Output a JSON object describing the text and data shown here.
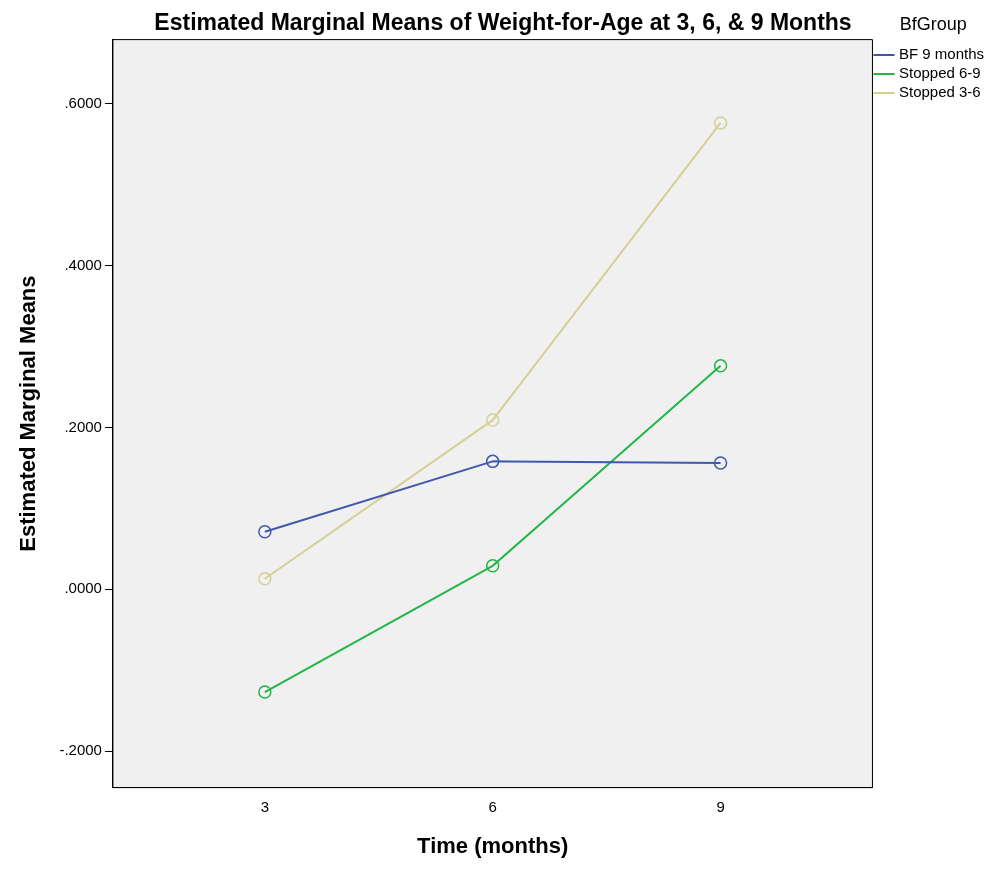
{
  "chart_data": {
    "type": "line",
    "title": "Estimated Marginal Means of Weight-for-Age at 3, 6, & 9 Months",
    "xlabel": "Time (months)",
    "ylabel": "Estimated Marginal Means",
    "legend_title": "BfGroup",
    "x": [
      3,
      6,
      9
    ],
    "series": [
      {
        "name": "BF 9 months",
        "color": "#3e58ac",
        "values": [
          0.071,
          0.158,
          0.156
        ]
      },
      {
        "name": "Stopped 6-9",
        "color": "#21b646",
        "values": [
          -0.127,
          0.029,
          0.276
        ]
      },
      {
        "name": "Stopped 3-6",
        "color": "#d4cf95",
        "values": [
          0.013,
          0.209,
          0.576
        ]
      }
    ],
    "xlim": [
      1,
      11
    ],
    "xticks": [
      3,
      6,
      9
    ],
    "ylim": [
      -0.245,
      0.679
    ],
    "yticks": [
      {
        "value": -0.2,
        "label": "-.2000"
      },
      {
        "value": 0,
        "label": ".0000"
      },
      {
        "value": 0.2,
        "label": ".2000"
      },
      {
        "value": 0.4,
        "label": ".4000"
      },
      {
        "value": 0.6,
        "label": ".6000"
      }
    ],
    "grid": false,
    "legend": "top right",
    "marker": "circle",
    "line_style": "solid"
  }
}
